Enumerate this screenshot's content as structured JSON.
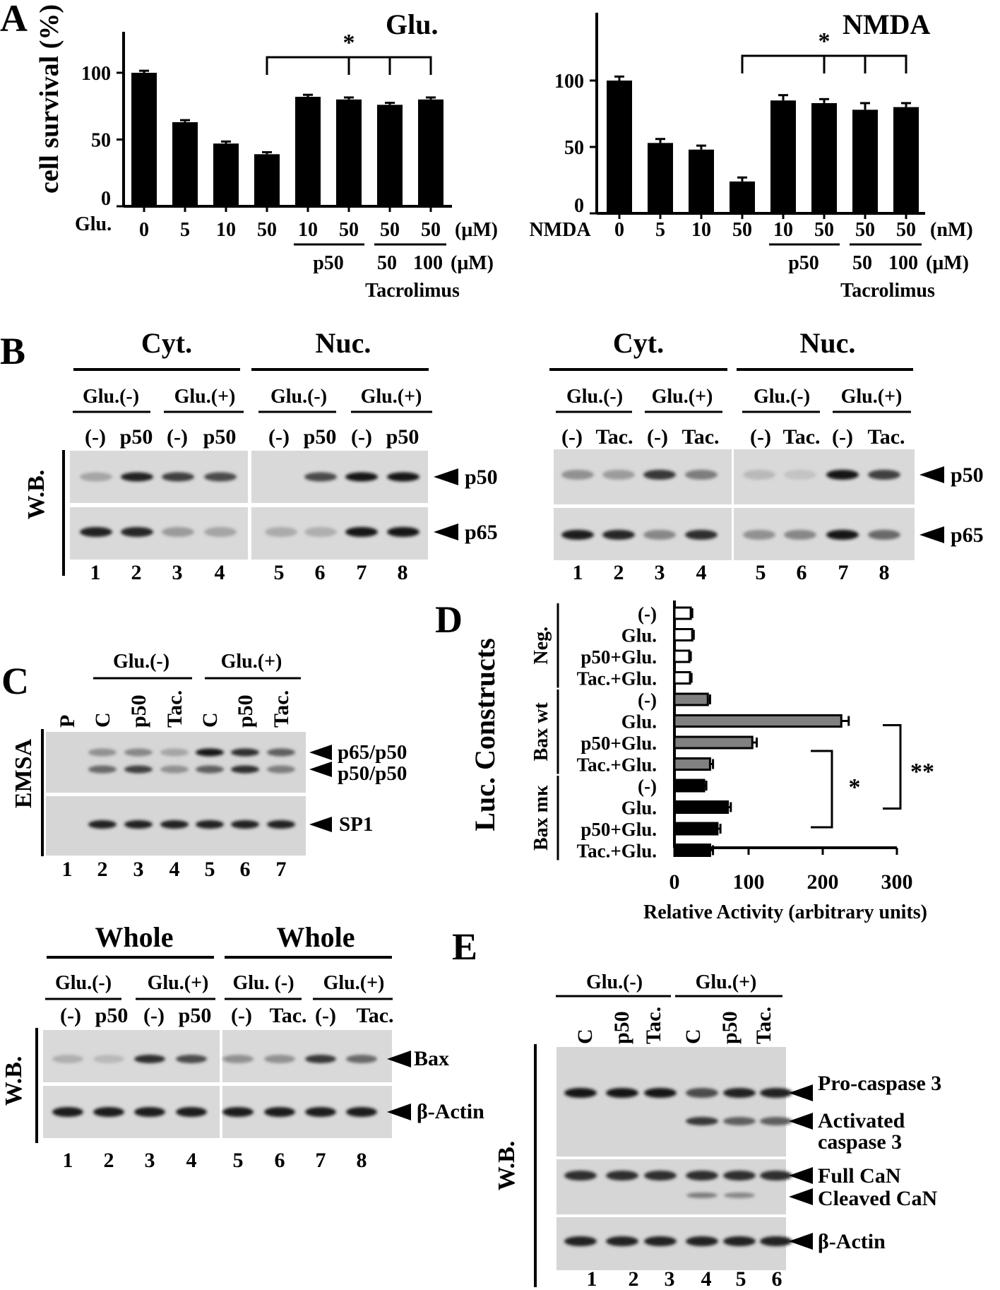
{
  "panel_letters": {
    "a": "A",
    "b": "B",
    "c": "C",
    "d": "D",
    "e": "E"
  },
  "chart_data": [
    {
      "type": "bar",
      "id": "A-glu",
      "title": "Glu.",
      "ylabel": "cell survival (%)",
      "ylim": [
        0,
        110
      ],
      "yticks": [
        "0",
        "50",
        "100"
      ],
      "ytick_values": [
        0,
        50,
        100
      ],
      "treatment_label": "Glu.",
      "conc_labels": [
        "0",
        "5",
        "10",
        "50",
        "10",
        "50",
        "50",
        "50"
      ],
      "conc_unit": "(μM)",
      "group1_label": "p50",
      "group2_labels": [
        "50",
        "100"
      ],
      "group2_unit": "(μM)",
      "group2_title": "Tacrolimus",
      "values": [
        100,
        63,
        47,
        39,
        82,
        80,
        76,
        80
      ],
      "errors": [
        1.5,
        1.5,
        1.5,
        1.5,
        1.5,
        1.5,
        1.5,
        1.5
      ],
      "significance": "*"
    },
    {
      "type": "bar",
      "id": "A-nmda",
      "title": "NMDA",
      "ylim": [
        0,
        110
      ],
      "yticks": [
        "0",
        "50",
        "100"
      ],
      "ytick_values": [
        0,
        50,
        100
      ],
      "treatment_label": "NMDA",
      "conc_labels": [
        "0",
        "5",
        "10",
        "50",
        "10",
        "50",
        "50",
        "50"
      ],
      "conc_unit": "(nM)",
      "group1_label": "p50",
      "group2_labels": [
        "50",
        "100"
      ],
      "group2_unit": "(μM)",
      "group2_title": "Tacrolimus",
      "values": [
        100,
        53,
        48,
        24,
        85,
        83,
        78,
        80
      ],
      "errors": [
        3,
        3,
        3,
        3,
        4,
        3,
        5,
        3
      ],
      "significance": "*"
    },
    {
      "type": "bar",
      "orientation": "horizontal",
      "id": "D",
      "ylabel": "Luc. Constructs",
      "xlabel": "Relative Activity (arbitrary units)",
      "xlim": [
        0,
        300
      ],
      "xticks": [
        "0",
        "100",
        "200",
        "300"
      ],
      "xtick_values": [
        0,
        100,
        200,
        300
      ],
      "groups": [
        {
          "name": "Neg.",
          "color": "#ffffff",
          "rows": [
            {
              "label": "(-)",
              "value": 22,
              "err": 2
            },
            {
              "label": "Glu.",
              "value": 24,
              "err": 2
            },
            {
              "label": "p50+Glu.",
              "value": 20,
              "err": 2
            },
            {
              "label": "Tac.+Glu.",
              "value": 21,
              "err": 2
            }
          ]
        },
        {
          "name": "Bax wt",
          "color": "#808080",
          "rows": [
            {
              "label": "(-)",
              "value": 45,
              "err": 3
            },
            {
              "label": "Glu.",
              "value": 225,
              "err": 10
            },
            {
              "label": "p50+Glu.",
              "value": 105,
              "err": 6
            },
            {
              "label": "Tac.+Glu.",
              "value": 48,
              "err": 4
            }
          ]
        },
        {
          "name": "Bax mκ",
          "color": "#000000",
          "rows": [
            {
              "label": "(-)",
              "value": 40,
              "err": 3
            },
            {
              "label": "Glu.",
              "value": 72,
              "err": 4
            },
            {
              "label": "p50+Glu.",
              "value": 58,
              "err": 4
            },
            {
              "label": "Tac.+Glu.",
              "value": 48,
              "err": 4
            }
          ]
        }
      ],
      "significance": [
        "*",
        "**"
      ]
    }
  ],
  "panelB": {
    "left": {
      "fractions": [
        "Cyt.",
        "Nuc."
      ],
      "conditions": [
        "Glu.(-)",
        "Glu.(+)",
        "Glu.(-)",
        "Glu.(+)"
      ],
      "treatments": [
        "(-)",
        "p50",
        "(-)",
        "p50",
        "(-)",
        "p50",
        "(-)",
        "p50"
      ],
      "lanes": [
        "1",
        "2",
        "3",
        "4",
        "5",
        "6",
        "7",
        "8"
      ],
      "method": "W.B.",
      "bands": [
        "p50",
        "p65"
      ]
    },
    "right": {
      "fractions": [
        "Cyt.",
        "Nuc."
      ],
      "conditions": [
        "Glu.(-)",
        "Glu.(+)",
        "Glu.(-)",
        "Glu.(+)"
      ],
      "treatments": [
        "(-)",
        "Tac.",
        "(-)",
        "Tac.",
        "(-)",
        "Tac.",
        "(-)",
        "Tac."
      ],
      "lanes": [
        "1",
        "2",
        "3",
        "4",
        "5",
        "6",
        "7",
        "8"
      ],
      "bands": [
        "p50",
        "p65"
      ]
    }
  },
  "panelC": {
    "conditions": [
      "Glu.(-)",
      "Glu.(+)"
    ],
    "lane_headers": [
      "P",
      "C",
      "p50",
      "Tac.",
      "C",
      "p50",
      "Tac."
    ],
    "lanes": [
      "1",
      "2",
      "3",
      "4",
      "5",
      "6",
      "7"
    ],
    "method": "EMSA",
    "bands": [
      "p65/p50",
      "p50/p50",
      "SP1"
    ]
  },
  "panelBax": {
    "titles": [
      "Whole",
      "Whole"
    ],
    "conditions": [
      "Glu.(-)",
      "Glu.(+)",
      "Glu. (-)",
      "Glu.(+)"
    ],
    "treatments": [
      "(-)",
      "p50",
      "(-)",
      "p50",
      "(-)",
      "Tac.",
      "(-)",
      "Tac."
    ],
    "lanes": [
      "1",
      "2",
      "3",
      "4",
      "5",
      "6",
      "7",
      "8"
    ],
    "method": "W.B.",
    "bands": [
      "Bax",
      "β-Actin"
    ]
  },
  "panelE": {
    "conditions": [
      "Glu.(-)",
      "Glu.(+)"
    ],
    "lane_headers": [
      "C",
      "p50",
      "Tac.",
      "C",
      "p50",
      "Tac."
    ],
    "lanes": [
      "1",
      "2",
      "3",
      "4",
      "5",
      "6"
    ],
    "method": "W.B.",
    "bands": [
      "Pro-caspase 3",
      "Activated",
      "caspase 3",
      "Full CaN",
      "Cleaved CaN",
      "β-Actin"
    ]
  }
}
